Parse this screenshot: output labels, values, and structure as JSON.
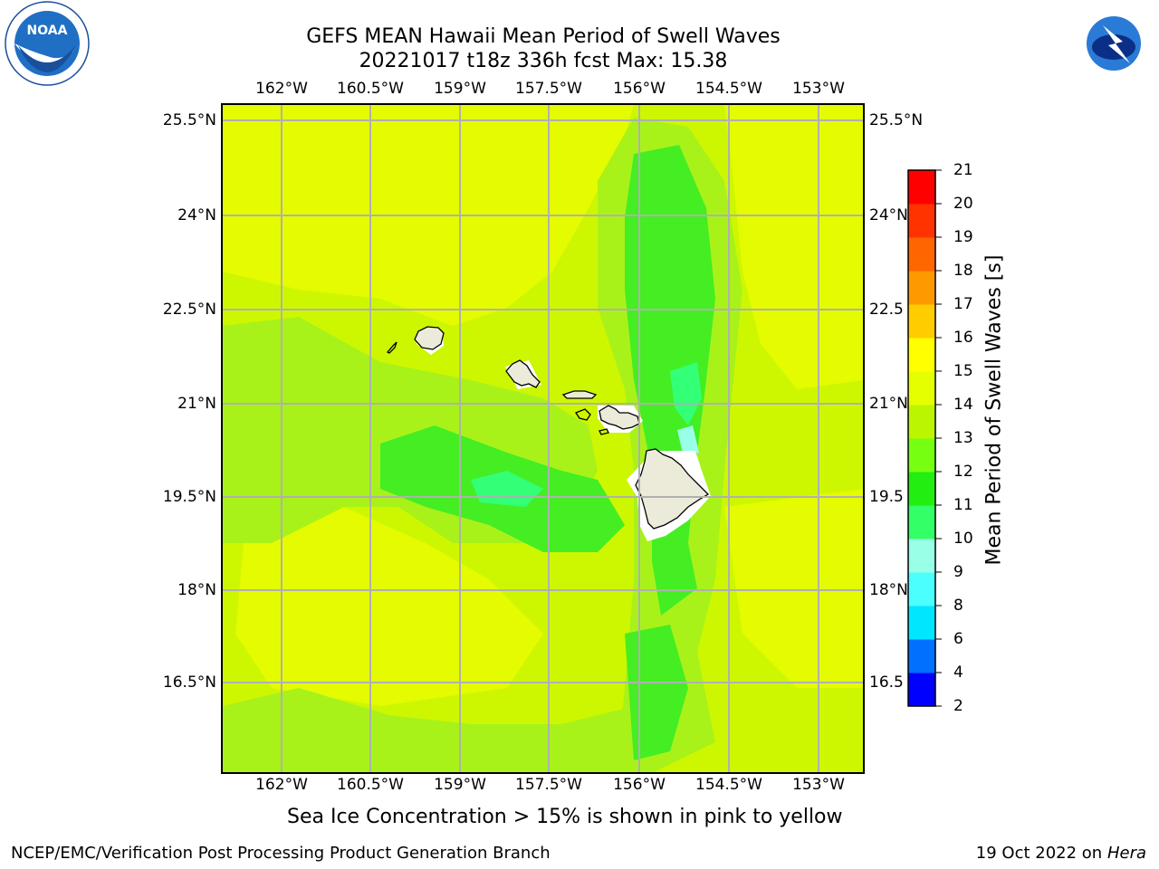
{
  "title": {
    "line1": "GEFS MEAN Hawaii Mean Period of Swell Waves",
    "line2": "20221017 t18z 336h fcst   Max: 15.38"
  },
  "map": {
    "lon_ticks": [
      "162°W",
      "160.5°W",
      "159°W",
      "157.5°W",
      "156°W",
      "154.5°W",
      "153°W"
    ],
    "lat_ticks": [
      "25.5°N",
      "24°N",
      "22.5°N",
      "21°N",
      "19.5°N",
      "18°N",
      "16.5°N"
    ],
    "lat_ticks_right": [
      "25.5°N",
      "24°N",
      "22.5",
      "21°N",
      "19.5",
      "18°N",
      "16.5"
    ],
    "lon_range": [
      -163,
      -152.2
    ],
    "lat_range": [
      15.2,
      25.9
    ],
    "background_color": "#cdf700",
    "islands": [
      "Niihau",
      "Kauai",
      "Oahu",
      "Molokai",
      "Lanai",
      "Maui",
      "Kahoolawe",
      "Hawaii"
    ]
  },
  "colorbar": {
    "label": "Mean Period of Swell Waves [s]",
    "ticks": [
      "2",
      "4",
      "6",
      "8",
      "9",
      "10",
      "11",
      "12",
      "13",
      "14",
      "15",
      "16",
      "17",
      "18",
      "19",
      "20",
      "21"
    ],
    "colors": [
      "#0000ff",
      "#0070ff",
      "#00e6ff",
      "#4cffff",
      "#99ffe6",
      "#33ff66",
      "#22ee11",
      "#77ff11",
      "#bbf500",
      "#e6ff00",
      "#ffff00",
      "#ffcc00",
      "#ff9900",
      "#ff6600",
      "#ff3300",
      "#ff0000"
    ]
  },
  "note": "Sea Ice Concentration > 15% is shown in pink to yellow",
  "footer": {
    "left": "NCEP/EMC/Verification Post Processing Product Generation Branch",
    "right_date": "19 Oct 2022 on ",
    "right_host": "Hera"
  },
  "logos": {
    "noaa": "NOAA",
    "nws": "NATIONAL WEATHER SERVICE"
  }
}
